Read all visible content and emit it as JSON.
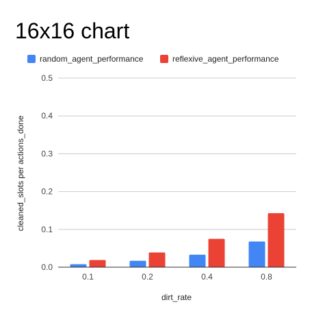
{
  "chart_data": {
    "type": "bar",
    "title": "16x16 chart",
    "xlabel": "dirt_rate",
    "ylabel": "cleaned_slots per actions_done",
    "categories": [
      "0.1",
      "0.2",
      "0.4",
      "0.8"
    ],
    "series": [
      {
        "name": "random_agent_performance",
        "color": "#4285f4",
        "values": [
          0.008,
          0.017,
          0.033,
          0.068
        ]
      },
      {
        "name": "reflexive_agent_performance",
        "color": "#ea4335",
        "values": [
          0.019,
          0.039,
          0.075,
          0.143
        ]
      }
    ],
    "ylim": [
      0,
      0.5
    ],
    "yticks": [
      "0.0",
      "0.1",
      "0.2",
      "0.3",
      "0.4",
      "0.5"
    ],
    "ytick_values": [
      0,
      0.1,
      0.2,
      0.3,
      0.4,
      0.5
    ],
    "grid": true,
    "legend_position": "top-left"
  }
}
